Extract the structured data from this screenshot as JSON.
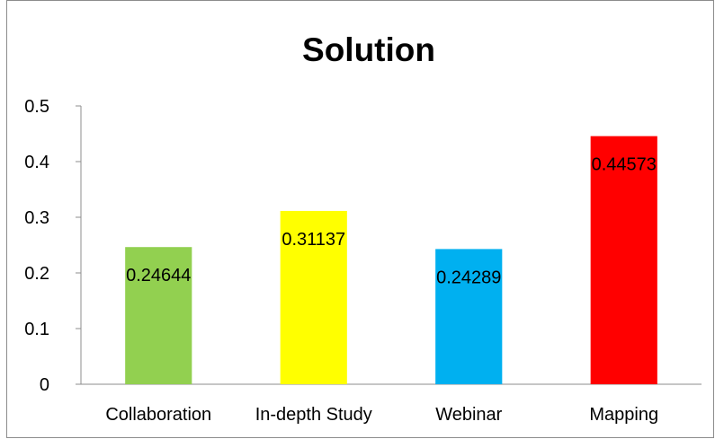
{
  "chart_data": {
    "type": "bar",
    "title": "Solution",
    "xlabel": "",
    "ylabel": "",
    "categories": [
      "Collaboration",
      "In-depth Study",
      "Webinar",
      "Mapping"
    ],
    "values": [
      0.24644,
      0.31137,
      0.24289,
      0.44573
    ],
    "data_labels": [
      "0.24644",
      "0.31137",
      "0.24289",
      "0.44573"
    ],
    "colors": [
      "#92d050",
      "#ffff00",
      "#00b0f0",
      "#ff0000"
    ],
    "ylim": [
      0,
      0.5
    ],
    "yticks": [
      0,
      0.1,
      0.2,
      0.3,
      0.4,
      0.5
    ],
    "ytick_labels": [
      "0",
      "0.1",
      "0.2",
      "0.3",
      "0.4",
      "0.5"
    ],
    "grid": false,
    "legend": "none"
  }
}
